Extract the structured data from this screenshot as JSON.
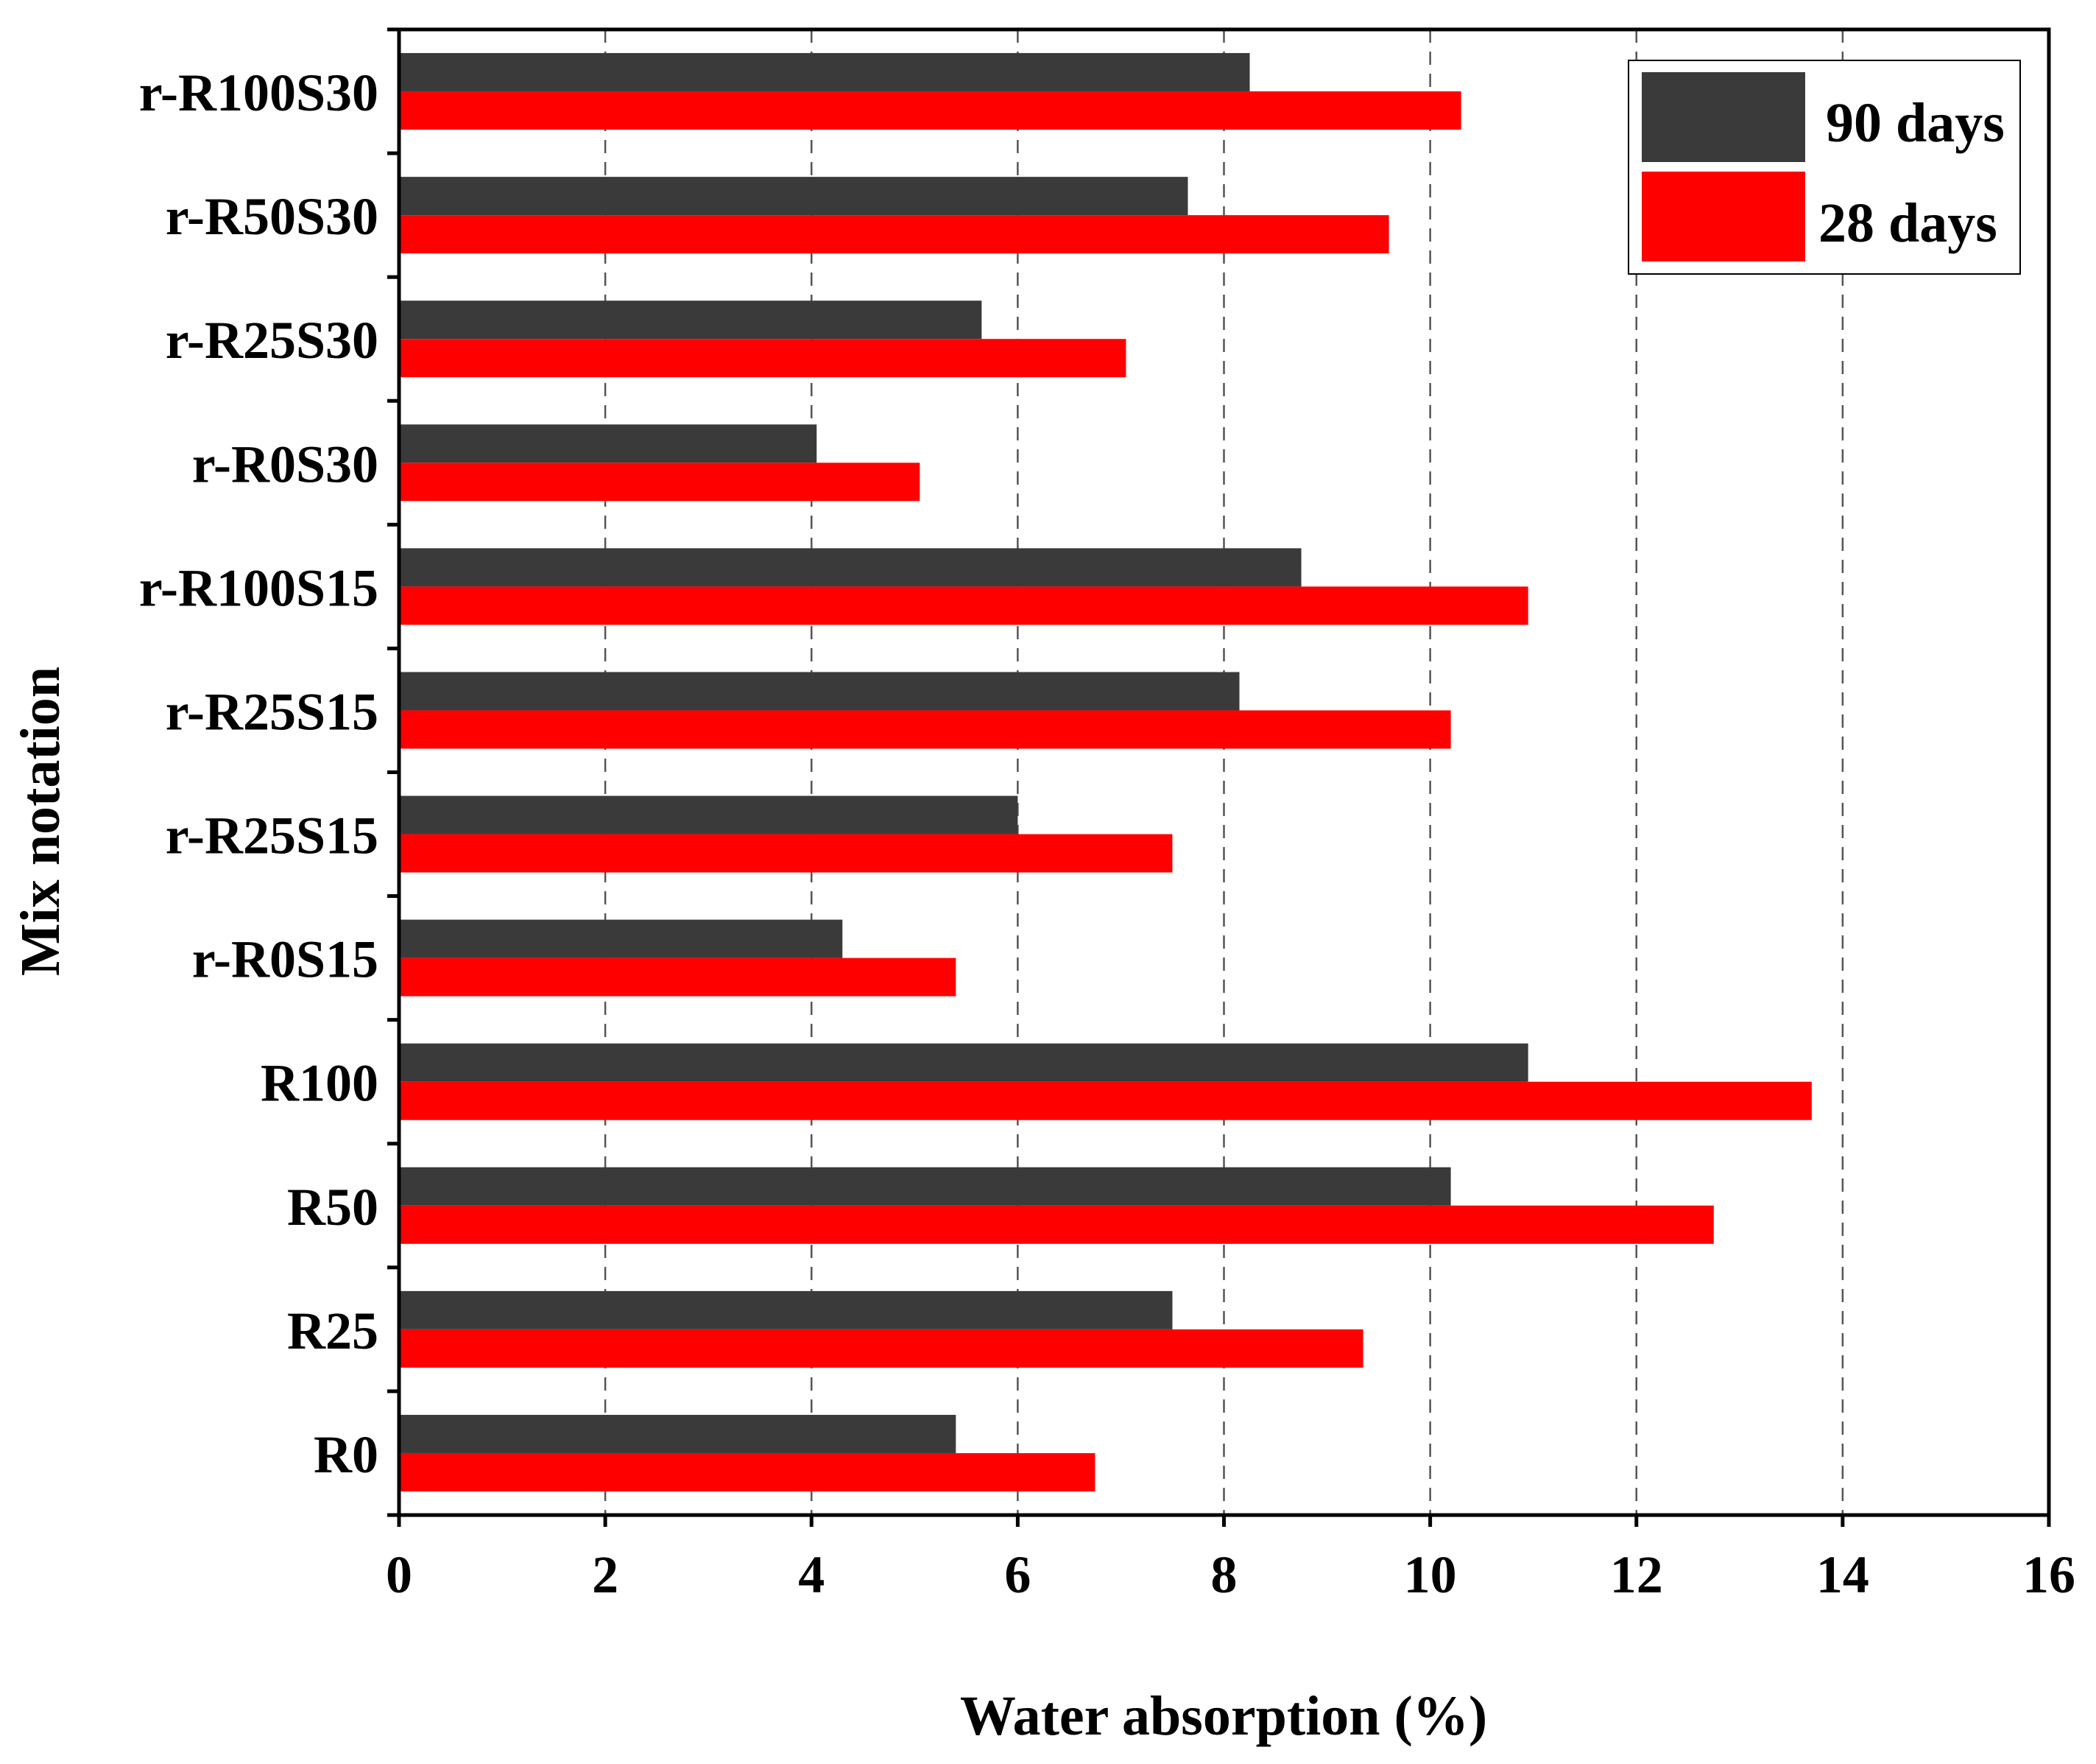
{
  "chart_data": {
    "type": "bar",
    "orientation": "horizontal",
    "title": "",
    "xlabel": "Water absorption (%)",
    "ylabel": "Mix notation",
    "xlim": [
      0,
      16
    ],
    "xticks": [
      0,
      2,
      4,
      6,
      8,
      10,
      12,
      14,
      16
    ],
    "xtick_labels": [
      "0",
      "2",
      "4",
      "6",
      "8",
      "10",
      "12",
      "14",
      "16"
    ],
    "grid": "vertical dashed",
    "legend_position": "top-right",
    "categories": [
      "R0",
      "R25",
      "R50",
      "R100",
      "r-R0S15",
      "r-R25S15",
      "r-R25S15",
      "r-R100S15",
      "r-R0S30",
      "r-R25S30",
      "r-R50S30",
      "r-R100S30"
    ],
    "series": [
      {
        "name": "90 days",
        "color": "#3a3a3a",
        "values": [
          5.4,
          7.5,
          10.2,
          10.95,
          4.3,
          6.0,
          8.15,
          8.75,
          4.05,
          5.65,
          7.65,
          8.25
        ]
      },
      {
        "name": "28 days",
        "color": "#ff0000",
        "values": [
          6.75,
          9.35,
          12.75,
          13.7,
          5.4,
          7.5,
          10.2,
          10.95,
          5.05,
          7.05,
          9.6,
          10.3
        ]
      }
    ]
  }
}
